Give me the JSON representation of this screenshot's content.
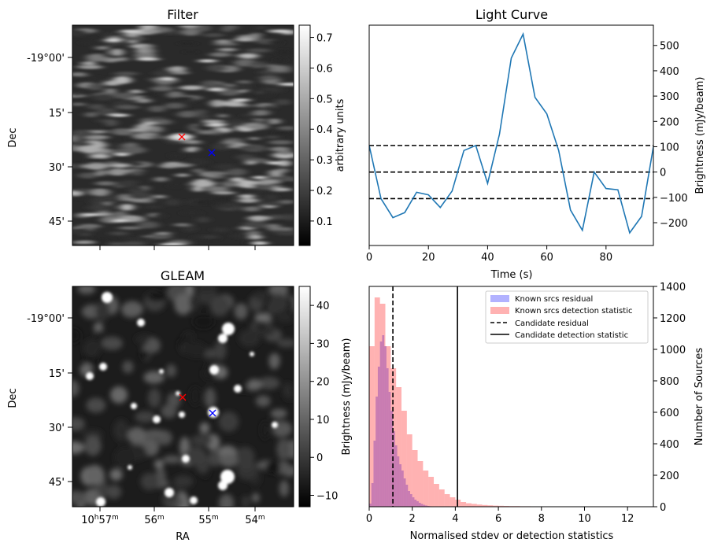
{
  "chart_data": [
    {
      "type": "heatmap",
      "title": "Filter",
      "ylabel": "Dec",
      "yticks": [
        "-19°00'",
        "15'",
        "30'",
        "45'"
      ],
      "colorbar": {
        "label": "arbitrary units",
        "range": [
          0.02,
          0.74
        ],
        "ticks": [
          "0.1",
          "0.2",
          "0.3",
          "0.4",
          "0.5",
          "0.6",
          "0.7"
        ],
        "cmap": "gray"
      },
      "markers": [
        {
          "color": "#ff0000",
          "symbol": "x"
        },
        {
          "color": "#0000ff",
          "symbol": "x"
        }
      ]
    },
    {
      "type": "line",
      "title": "Light Curve",
      "xlabel": "Time (s)",
      "ylabel": "Brightness (mJy/beam)",
      "xlim": [
        0,
        96
      ],
      "ylim": [
        -290,
        580
      ],
      "xticks": [
        0,
        20,
        40,
        60,
        80
      ],
      "yticks": [
        -200,
        -100,
        0,
        100,
        200,
        300,
        400,
        500
      ],
      "series": [
        {
          "color": "#1f77b4",
          "x": [
            0,
            4,
            8,
            12,
            16,
            20,
            24,
            28,
            32,
            36,
            40,
            44,
            48,
            52,
            56,
            60,
            64,
            68,
            72,
            76,
            80,
            84,
            88,
            92,
            96
          ],
          "values": [
            105,
            -105,
            -180,
            -160,
            -80,
            -90,
            -140,
            -75,
            85,
            105,
            -45,
            150,
            450,
            545,
            295,
            230,
            85,
            -150,
            -230,
            0,
            -65,
            -70,
            -240,
            -175,
            100
          ]
        }
      ],
      "hlines": [
        {
          "y": 105,
          "style": "dashed"
        },
        {
          "y": 0,
          "style": "dashed"
        },
        {
          "y": -105,
          "style": "dashed"
        }
      ]
    },
    {
      "type": "heatmap",
      "title": "GLEAM",
      "xlabel": "RA",
      "ylabel": "Dec",
      "yticks": [
        "-19°00'",
        "15'",
        "30'",
        "45'"
      ],
      "xticks": [
        {
          "main": "10",
          "sup1": "h",
          "mid": "57",
          "sup2": "m"
        },
        {
          "main": "56",
          "sup1": "",
          "mid": "",
          "sup2": "m"
        },
        {
          "main": "55",
          "sup1": "",
          "mid": "",
          "sup2": "m"
        },
        {
          "main": "54",
          "sup1": "",
          "mid": "",
          "sup2": "m"
        }
      ],
      "colorbar": {
        "label": "Brightness (mJy/beam)",
        "range": [
          -13,
          45
        ],
        "ticks": [
          "−10",
          "0",
          "10",
          "20",
          "30",
          "40"
        ],
        "cmap": "gray"
      },
      "markers": [
        {
          "color": "#ff0000",
          "symbol": "x"
        },
        {
          "color": "#0000ff",
          "symbol": "x"
        }
      ]
    },
    {
      "type": "bar",
      "xlabel": "Normalised stdev or detection statistics",
      "ylabel": "Number of Sources",
      "xlim": [
        0,
        13.2
      ],
      "ylim": [
        0,
        1400
      ],
      "xticks": [
        0,
        2,
        4,
        6,
        8,
        10,
        12
      ],
      "yticks": [
        0,
        200,
        400,
        600,
        800,
        1000,
        1200,
        1400
      ],
      "bin_width_residual": 0.1,
      "bin_width_detection": 0.25,
      "series": [
        {
          "name": "Known srcs residual",
          "color": "#0000ff",
          "opacity": 0.3,
          "values": [
            20,
            150,
            420,
            700,
            890,
            1050,
            1090,
            1020,
            880,
            730,
            610,
            480,
            390,
            320,
            270,
            230,
            180,
            140,
            100,
            80,
            60,
            45,
            35,
            25,
            18,
            12,
            8,
            5,
            3,
            2
          ]
        },
        {
          "name": "Known srcs detection statistic",
          "color": "#ff0000",
          "opacity": 0.3,
          "values": [
            1020,
            1330,
            1290,
            1020,
            880,
            760,
            610,
            460,
            360,
            290,
            230,
            190,
            145,
            110,
            80,
            60,
            45,
            30,
            22,
            18,
            14,
            11,
            9,
            7,
            6,
            5,
            4,
            4,
            3,
            3,
            2,
            2,
            2,
            1,
            1,
            1,
            1,
            1,
            1,
            1,
            1,
            1,
            1,
            1,
            1,
            1,
            1,
            1,
            1,
            1,
            1,
            1
          ]
        }
      ],
      "vlines": [
        {
          "name": "Candidate residual",
          "x": 1.1,
          "style": "dashed"
        },
        {
          "name": "Candidate detection statistic",
          "x": 4.1,
          "style": "solid"
        }
      ],
      "legend": "top-right"
    }
  ]
}
